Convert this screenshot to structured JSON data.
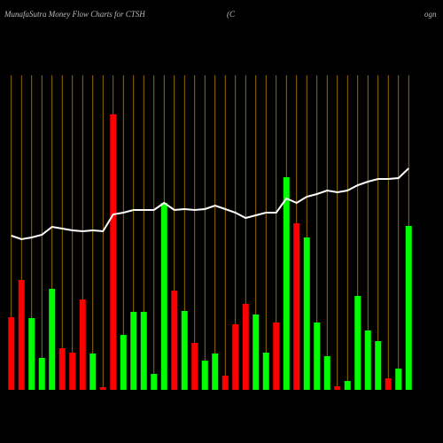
{
  "chart_data": {
    "type": "bar",
    "title": "MunafaSutra  Money Flow  Charts for CTSH",
    "subtitle": "(C",
    "subtitle_right": "ogn",
    "categories": [
      null,
      null,
      null,
      null,
      null,
      null,
      null,
      null,
      null,
      null,
      null,
      null,
      null,
      null,
      null,
      null,
      null,
      null,
      null,
      null,
      null,
      null,
      null,
      null,
      null,
      null,
      null,
      null,
      null,
      null,
      null,
      null,
      null,
      null,
      null,
      null,
      null,
      null,
      null,
      null
    ],
    "values": [
      82,
      124,
      81,
      36,
      114,
      47,
      42,
      102,
      41,
      3,
      311,
      62,
      88,
      88,
      18,
      211,
      112,
      89,
      53,
      33,
      41,
      16,
      74,
      97,
      85,
      42,
      76,
      240,
      188,
      172,
      76,
      38,
      4,
      10,
      106,
      67,
      55,
      13,
      24,
      185
    ],
    "bar_colors": [
      "#ff0000",
      "#ff0000",
      "#00ff00",
      "#00ff00",
      "#00ff00",
      "#ff0000",
      "#ff0000",
      "#ff0000",
      "#00ff00",
      "#ff0000",
      "#ff0000",
      "#00ff00",
      "#00ff00",
      "#00ff00",
      "#00ff00",
      "#00ff00",
      "#ff0000",
      "#00ff00",
      "#ff0000",
      "#00ff00",
      "#00ff00",
      "#ff0000",
      "#ff0000",
      "#ff0000",
      "#00ff00",
      "#00ff00",
      "#ff0000",
      "#00ff00",
      "#ff0000",
      "#00ff00",
      "#00ff00",
      "#00ff00",
      "#ff0000",
      "#00ff00",
      "#00ff00",
      "#00ff00",
      "#00ff00",
      "#ff0000",
      "#00ff00",
      "#00ff00"
    ],
    "line_values": [
      174,
      170,
      172,
      175,
      184,
      182,
      180,
      179,
      180,
      179,
      198,
      200,
      203,
      203,
      203,
      211,
      203,
      204,
      203,
      204,
      208,
      204,
      200,
      194,
      197,
      200,
      200,
      216,
      211,
      218,
      221,
      225,
      223,
      225,
      231,
      235,
      238,
      238,
      239,
      250
    ],
    "line_color": "#ffffff",
    "grid_color": "#b8860b",
    "ylim": [
      0,
      440
    ]
  }
}
